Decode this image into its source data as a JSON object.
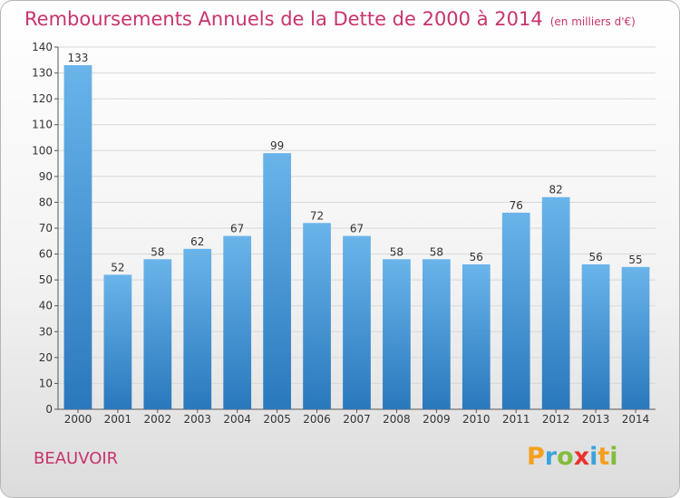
{
  "title": "Remboursements Annuels de la Dette de 2000 à 2014",
  "unit_note": "(en milliers d'€)",
  "place_name": "BEAUVOIR",
  "logo": {
    "letters": [
      "P",
      "r",
      "o",
      "x",
      "i",
      "t",
      "i"
    ],
    "colors": [
      "#f59f1e",
      "#3aa3de",
      "#83bd3c",
      "#e8332f",
      "#3aa3de",
      "#f59f1e",
      "#83bd3c"
    ]
  },
  "colors": {
    "title": "#c8336e",
    "bar_top": "#6ab4ea",
    "bar_bottom": "#2a78bd"
  },
  "chart_data": {
    "type": "bar",
    "categories": [
      "2000",
      "2001",
      "2002",
      "2003",
      "2004",
      "2005",
      "2006",
      "2007",
      "2008",
      "2009",
      "2010",
      "2011",
      "2012",
      "2013",
      "2014"
    ],
    "values": [
      133,
      52,
      58,
      62,
      67,
      99,
      72,
      67,
      58,
      58,
      56,
      76,
      82,
      56,
      55
    ],
    "ylim": [
      0,
      140
    ],
    "yticks": [
      0,
      10,
      20,
      30,
      40,
      50,
      60,
      70,
      80,
      90,
      100,
      110,
      120,
      130,
      140
    ],
    "grid": "horizontal",
    "data_labels": true
  }
}
